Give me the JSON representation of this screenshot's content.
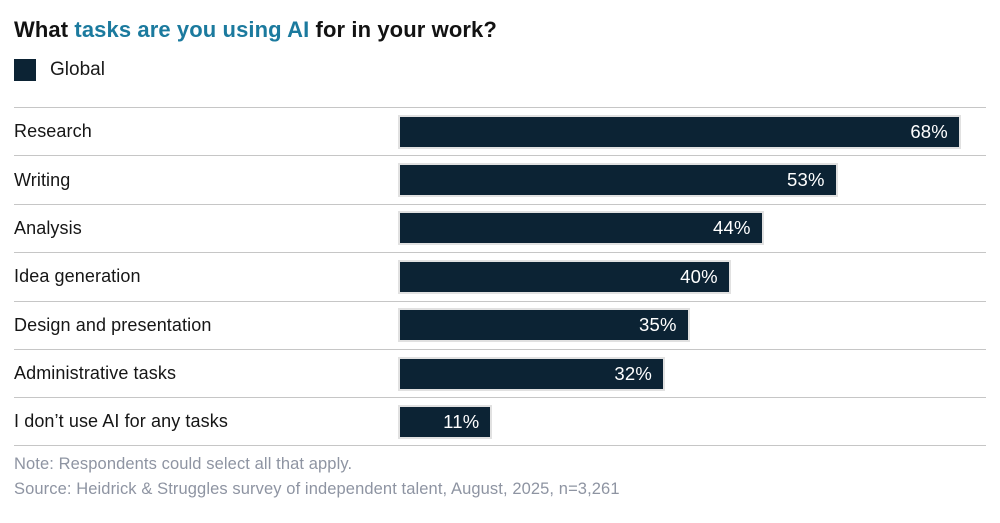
{
  "title": {
    "part1": "What ",
    "part2": "tasks are you using AI",
    "part3": " for in your work?"
  },
  "legend": {
    "label": "Global",
    "swatch_color": "#0c2334"
  },
  "colors": {
    "bar_navy": "#0c2334",
    "accent_teal": "#1b7a9e",
    "footer_gray": "#8e94a2",
    "separator_gray": "#c6c6c6",
    "value_text": "#ffffff"
  },
  "chart_data": {
    "type": "bar",
    "orientation": "horizontal",
    "title": "What tasks are you using AI for in your work?",
    "series": [
      {
        "name": "Global",
        "values": [
          68,
          53,
          44,
          40,
          35,
          32,
          11
        ]
      }
    ],
    "categories": [
      "Research",
      "Writing",
      "Analysis",
      "Idea generation",
      "Design and presentation",
      "Administrative tasks",
      "I don’t use AI for any tasks"
    ],
    "value_labels": [
      "68%",
      "53%",
      "44%",
      "40%",
      "35%",
      "32%",
      "11%"
    ],
    "value_unit": "%",
    "xlabel": "",
    "ylabel": "",
    "xlim": [
      0,
      71
    ],
    "grid": false,
    "legend_position": "top-left",
    "data_labels": "inside-end"
  },
  "footer": {
    "note": "Note: Respondents could select all that apply.",
    "source": "Source: Heidrick & Struggles survey of independent talent, August, 2025, n=3,261"
  }
}
